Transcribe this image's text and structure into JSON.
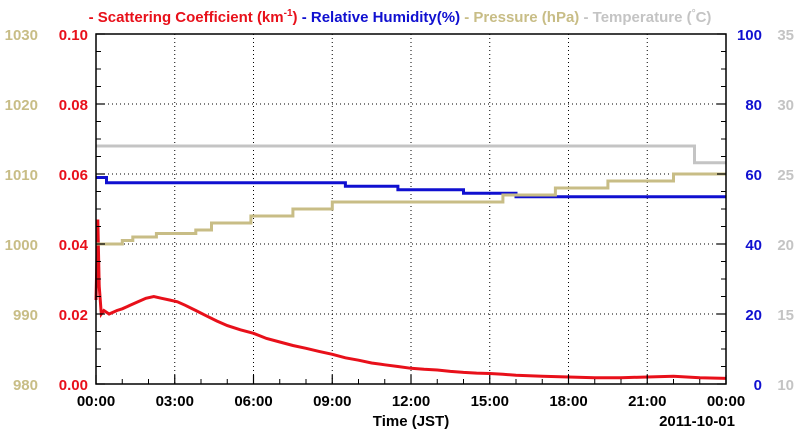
{
  "chart_data": {
    "type": "line",
    "xlabel": "Time (JST)",
    "date_label": "2011-10-01",
    "x_tick_labels": [
      "00:00",
      "03:00",
      "06:00",
      "09:00",
      "12:00",
      "15:00",
      "18:00",
      "21:00",
      "00:00"
    ],
    "x_range_hours": [
      0,
      24
    ],
    "axes": {
      "pressure": {
        "unit": "hPa",
        "range": [
          980,
          1030
        ],
        "ticks": [
          "980",
          "990",
          "1000",
          "1010",
          "1020",
          "1030"
        ],
        "color": "#c8bd86",
        "side": "left-outer"
      },
      "scattering": {
        "range": [
          0,
          0.1
        ],
        "ticks": [
          "0.00",
          "0.02",
          "0.04",
          "0.06",
          "0.08",
          "0.10"
        ],
        "color": "#e8101a",
        "side": "left-inner"
      },
      "humidity": {
        "range": [
          0,
          100
        ],
        "ticks": [
          "0",
          "20",
          "40",
          "60",
          "80",
          "100"
        ],
        "color": "#1010d0",
        "side": "right-inner"
      },
      "temperature": {
        "range": [
          10,
          35
        ],
        "ticks": [
          "10",
          "15",
          "20",
          "25",
          "30",
          "35"
        ],
        "color": "#c4c4c4",
        "side": "right-outer"
      }
    },
    "grid": true,
    "legend": {
      "position": "top",
      "items": [
        {
          "axis": "scattering",
          "prefix": "- ",
          "text": "Scattering Coefficient (km",
          "sup": "-1",
          "suffix": ")"
        },
        {
          "axis": "humidity",
          "prefix": " - ",
          "text": "Relative Humidity(%)"
        },
        {
          "axis": "pressure",
          "prefix": " - ",
          "text": "Pressure (hPa)"
        },
        {
          "axis": "temperature",
          "prefix": " - ",
          "text": "Temperature (",
          "sup": "°",
          "suffix": "C)"
        }
      ]
    },
    "series": [
      {
        "name": "Scattering Coefficient",
        "axis": "scattering",
        "x": [
          0,
          0.07,
          0.12,
          0.2,
          0.3,
          0.5,
          0.8,
          1.0,
          1.3,
          1.6,
          1.9,
          2.2,
          2.5,
          2.8,
          3.1,
          3.4,
          3.8,
          4.2,
          4.6,
          5.0,
          5.5,
          6.0,
          6.5,
          7.0,
          7.5,
          8.0,
          8.5,
          9.0,
          9.5,
          10.0,
          10.5,
          11.0,
          11.5,
          12.0,
          12.5,
          13.0,
          13.5,
          14.0,
          14.5,
          15.0,
          15.5,
          16.0,
          17.0,
          18.0,
          19.0,
          20.0,
          21.0,
          22.0,
          23.0,
          24.0
        ],
        "values": [
          0.024,
          0.047,
          0.028,
          0.02,
          0.021,
          0.02,
          0.021,
          0.0215,
          0.0225,
          0.0235,
          0.0245,
          0.025,
          0.0245,
          0.024,
          0.0235,
          0.0225,
          0.021,
          0.0195,
          0.018,
          0.0167,
          0.0155,
          0.0145,
          0.013,
          0.012,
          0.011,
          0.0102,
          0.0093,
          0.0085,
          0.0075,
          0.0068,
          0.006,
          0.0055,
          0.005,
          0.0045,
          0.0042,
          0.004,
          0.0036,
          0.0033,
          0.0031,
          0.003,
          0.0028,
          0.0025,
          0.0022,
          0.002,
          0.0018,
          0.0018,
          0.002,
          0.0022,
          0.0018,
          0.0016
        ]
      },
      {
        "name": "Relative Humidity",
        "axis": "humidity",
        "x": [
          0,
          0.4,
          0.4,
          9.5,
          9.5,
          11.5,
          11.5,
          14.0,
          14.0,
          16.0,
          16.0,
          24.0
        ],
        "values": [
          59,
          59,
          57.5,
          57.5,
          56.5,
          56.5,
          55.5,
          55.5,
          54.5,
          54.5,
          53.5,
          53.5
        ]
      },
      {
        "name": "Pressure",
        "axis": "pressure",
        "x": [
          0,
          1.0,
          1.0,
          1.4,
          1.4,
          2.3,
          2.3,
          3.8,
          3.8,
          4.4,
          4.4,
          5.9,
          5.9,
          7.5,
          7.5,
          9.0,
          9.0,
          15.5,
          15.5,
          17.5,
          17.5,
          19.5,
          19.5,
          22.0,
          22.0,
          24.0
        ],
        "values": [
          1000,
          1000,
          1000.5,
          1000.5,
          1001,
          1001,
          1001.5,
          1001.5,
          1002,
          1002,
          1003,
          1003,
          1004,
          1004,
          1005,
          1005,
          1006,
          1006,
          1007,
          1007,
          1008,
          1008,
          1009,
          1009,
          1010,
          1010
        ]
      },
      {
        "name": "Temperature",
        "axis": "temperature",
        "x": [
          0,
          22.8,
          22.8,
          24.0
        ],
        "values": [
          27,
          27,
          25.8,
          25.8
        ]
      }
    ]
  }
}
